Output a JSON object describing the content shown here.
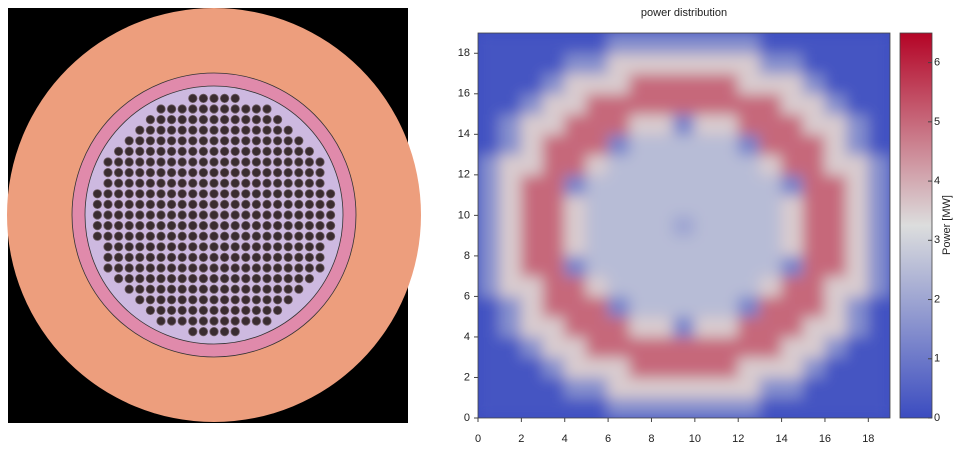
{
  "chart_data": {
    "type": "heatmap",
    "title": "power distribution",
    "xlim": [
      0,
      19
    ],
    "ylim": [
      0,
      19
    ],
    "xticks": [
      0,
      2,
      4,
      6,
      8,
      10,
      12,
      14,
      16,
      18
    ],
    "yticks": [
      0,
      2,
      4,
      6,
      8,
      10,
      12,
      14,
      16,
      18
    ],
    "zlim": [
      0,
      6.5
    ],
    "colorbar_ticks": [
      0,
      1,
      2,
      3,
      4,
      5,
      6
    ],
    "colorbar_label": "Power [MW]",
    "colormap": [
      "#3b4cc0",
      "#dcdddd",
      "#b40426"
    ],
    "z": [
      [
        0.2,
        0.2,
        0.2,
        0.2,
        0.2,
        0.2,
        1.5,
        1.5,
        1.5,
        1.5,
        1.5,
        1.5,
        1.5,
        0.2,
        0.2,
        0.2,
        0.2,
        0.2,
        0.2
      ],
      [
        0.2,
        0.2,
        0.2,
        0.2,
        1.5,
        1.5,
        3.5,
        3.5,
        3.5,
        3.5,
        3.5,
        3.5,
        3.5,
        1.5,
        1.5,
        0.2,
        0.2,
        0.2,
        0.2
      ],
      [
        0.2,
        0.2,
        0.2,
        1.5,
        3.5,
        3.5,
        3.5,
        5,
        5,
        5,
        5,
        5,
        3.5,
        3.5,
        3.5,
        1.5,
        0.2,
        0.2,
        0.2
      ],
      [
        0.2,
        0.2,
        1.5,
        3.5,
        3.5,
        5,
        5,
        5,
        5,
        5,
        5,
        5,
        5,
        5,
        3.5,
        3.5,
        1.5,
        0.2,
        0.2
      ],
      [
        0.2,
        1.5,
        3.5,
        3.5,
        5,
        5,
        5,
        3.5,
        3.5,
        1.2,
        3.5,
        3.5,
        5,
        5,
        5,
        3.5,
        3.5,
        1.5,
        0.2
      ],
      [
        0.2,
        1.5,
        3.5,
        5,
        5,
        5,
        1.2,
        2.5,
        2.5,
        2.5,
        2.5,
        2.5,
        1.2,
        5,
        5,
        5,
        3.5,
        1.5,
        0.2
      ],
      [
        1.5,
        3.5,
        3.5,
        5,
        5,
        3.5,
        2.5,
        2.5,
        2.5,
        2.5,
        2.5,
        2.5,
        2.5,
        3.5,
        5,
        5,
        3.5,
        3.5,
        1.5
      ],
      [
        1.5,
        3.5,
        5,
        5,
        1.2,
        2.5,
        2.5,
        2.5,
        2.5,
        2.5,
        2.5,
        2.5,
        2.5,
        2.5,
        1.2,
        5,
        5,
        3.5,
        1.5
      ],
      [
        1.5,
        3.5,
        5,
        5,
        3.5,
        2.5,
        2.5,
        2.5,
        2.5,
        2.5,
        2.5,
        2.5,
        2.5,
        2.5,
        3.5,
        5,
        5,
        3.5,
        1.5
      ],
      [
        1.5,
        3.5,
        5,
        5,
        3.5,
        2.5,
        2.5,
        2.5,
        2.5,
        2,
        2.5,
        2.5,
        2.5,
        2.5,
        3.5,
        5,
        5,
        3.5,
        1.5
      ],
      [
        1.5,
        3.5,
        5,
        5,
        3.5,
        2.5,
        2.5,
        2.5,
        2.5,
        2.5,
        2.5,
        2.5,
        2.5,
        2.5,
        3.5,
        5,
        5,
        3.5,
        1.5
      ],
      [
        1.5,
        3.5,
        5,
        5,
        1.2,
        2.5,
        2.5,
        2.5,
        2.5,
        2.5,
        2.5,
        2.5,
        2.5,
        2.5,
        1.2,
        5,
        5,
        3.5,
        1.5
      ],
      [
        1.5,
        3.5,
        3.5,
        5,
        5,
        3.5,
        2.5,
        2.5,
        2.5,
        2.5,
        2.5,
        2.5,
        2.5,
        3.5,
        5,
        5,
        3.5,
        3.5,
        1.5
      ],
      [
        0.2,
        1.5,
        3.5,
        5,
        5,
        5,
        1.2,
        2.5,
        2.5,
        2.5,
        2.5,
        2.5,
        1.2,
        5,
        5,
        5,
        3.5,
        1.5,
        0.2
      ],
      [
        0.2,
        1.5,
        3.5,
        3.5,
        5,
        5,
        5,
        3.5,
        3.5,
        1.2,
        3.5,
        3.5,
        5,
        5,
        5,
        3.5,
        3.5,
        1.5,
        0.2
      ],
      [
        0.2,
        0.2,
        1.5,
        3.5,
        3.5,
        5,
        5,
        5,
        5,
        5,
        5,
        5,
        5,
        5,
        3.5,
        3.5,
        1.5,
        0.2,
        0.2
      ],
      [
        0.2,
        0.2,
        0.2,
        1.5,
        3.5,
        3.5,
        3.5,
        5,
        5,
        5,
        5,
        5,
        3.5,
        3.5,
        3.5,
        1.5,
        0.2,
        0.2,
        0.2
      ],
      [
        0.2,
        0.2,
        0.2,
        0.2,
        1.5,
        1.5,
        3.5,
        3.5,
        3.5,
        3.5,
        3.5,
        3.5,
        3.5,
        1.5,
        1.5,
        0.2,
        0.2,
        0.2,
        0.2
      ],
      [
        0.2,
        0.2,
        0.2,
        0.2,
        0.2,
        0.2,
        1.5,
        1.5,
        1.5,
        1.5,
        1.5,
        1.5,
        1.5,
        0.2,
        0.2,
        0.2,
        0.2,
        0.2,
        0.2
      ]
    ]
  }
}
